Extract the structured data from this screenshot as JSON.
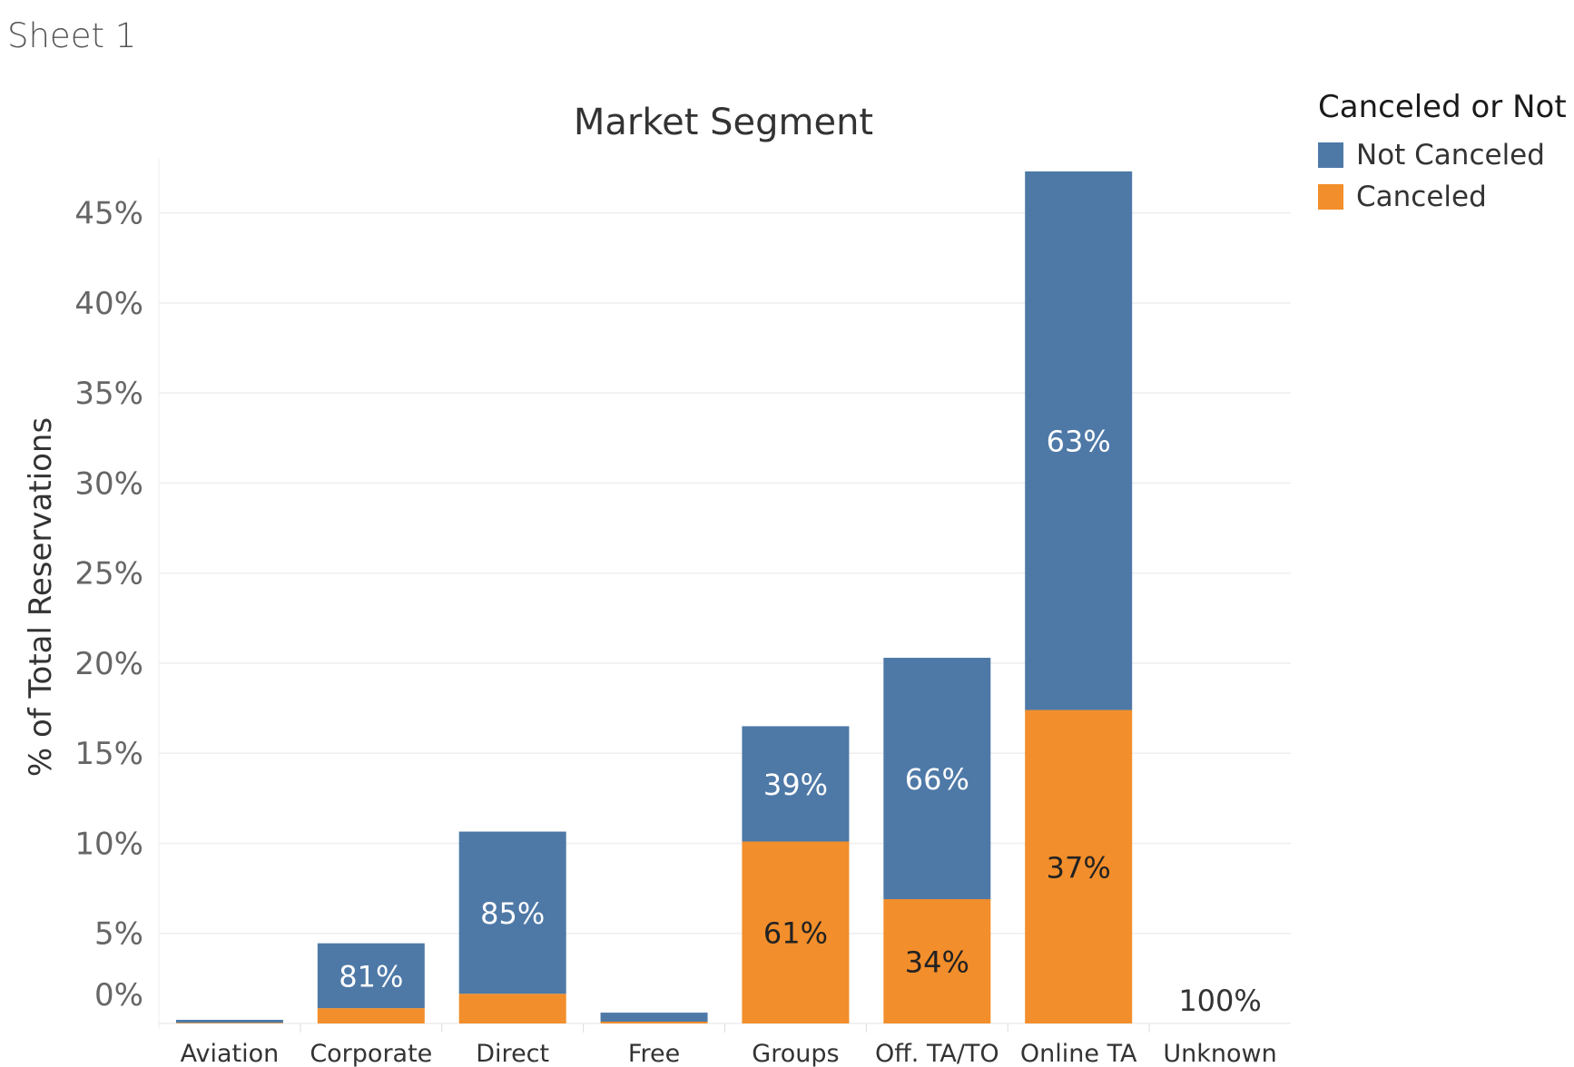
{
  "sheet": {
    "title": "Sheet 1"
  },
  "legend": {
    "title": "Canceled or Not",
    "items": [
      {
        "name": "Not Canceled",
        "color": "#4e79a7"
      },
      {
        "name": "Canceled",
        "color": "#f28e2b"
      }
    ]
  },
  "chart_data": {
    "type": "bar",
    "stacked": true,
    "title": "Market Segment",
    "xlabel": "",
    "ylabel": "% of Total Reservations",
    "ylim": [
      0,
      48
    ],
    "yticks": [
      "0%",
      "5%",
      "10%",
      "15%",
      "20%",
      "25%",
      "30%",
      "35%",
      "40%",
      "45%"
    ],
    "grid": true,
    "legend_position": "top-right",
    "categories": [
      "Aviation",
      "Corporate",
      "Direct",
      "Free",
      "Groups",
      "Off. TA/TO",
      "Online TA",
      "Unknown"
    ],
    "series": [
      {
        "name": "Canceled",
        "color": "#f28e2b",
        "values": [
          0.04,
          0.85,
          1.65,
          0.1,
          10.1,
          6.9,
          17.4,
          0.0
        ],
        "labels": [
          "",
          "",
          "",
          "",
          "61%",
          "34%",
          "37%",
          "100%"
        ]
      },
      {
        "name": "Not Canceled",
        "color": "#4e79a7",
        "values": [
          0.16,
          3.6,
          9.0,
          0.5,
          6.4,
          13.4,
          29.9,
          0.0
        ],
        "labels": [
          "",
          "81%",
          "85%",
          "",
          "39%",
          "66%",
          "63%",
          ""
        ]
      }
    ]
  }
}
